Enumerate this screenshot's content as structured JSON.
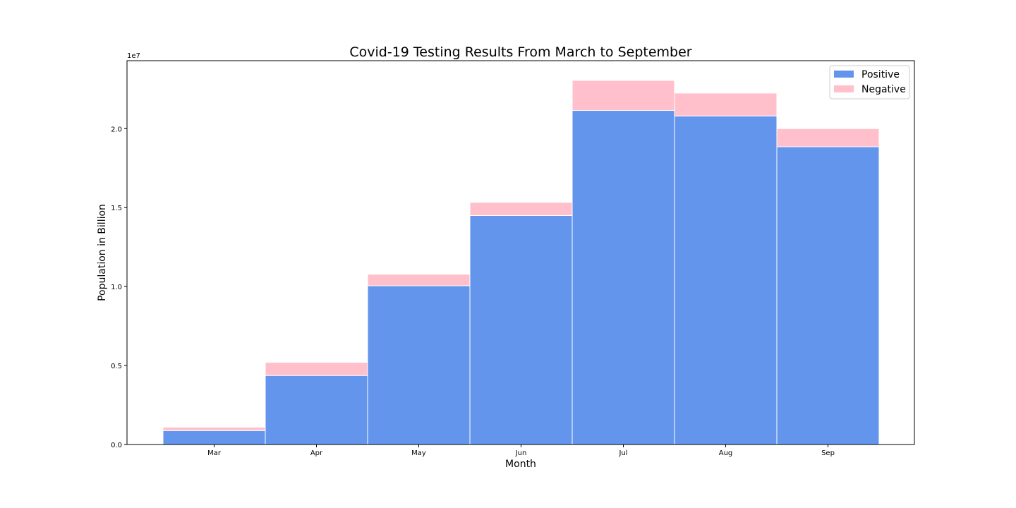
{
  "chart_data": {
    "type": "bar",
    "stacked": true,
    "title": "Covid-19 Testing Results From March to September",
    "xlabel": "Month",
    "ylabel": "Population in Billion",
    "y_offset_label": "1e7",
    "categories": [
      "Mar",
      "Apr",
      "May",
      "Jun",
      "Jul",
      "Aug",
      "Sep"
    ],
    "series": [
      {
        "name": "Positive",
        "color": "#6495ED",
        "values": [
          880000,
          4370000,
          10050000,
          14500000,
          21150000,
          20800000,
          18850000
        ]
      },
      {
        "name": "Negative",
        "color": "#FFC0CB",
        "values": [
          220000,
          830000,
          730000,
          830000,
          1900000,
          1450000,
          1150000
        ]
      }
    ],
    "ylim": [
      0,
      24300000
    ],
    "y_ticks": [
      0,
      5000000,
      10000000,
      15000000,
      20000000
    ],
    "y_tick_labels": [
      "0.0",
      "0.5",
      "1.0",
      "1.5",
      "2.0"
    ],
    "legend_position": "top-right",
    "grid": false
  }
}
